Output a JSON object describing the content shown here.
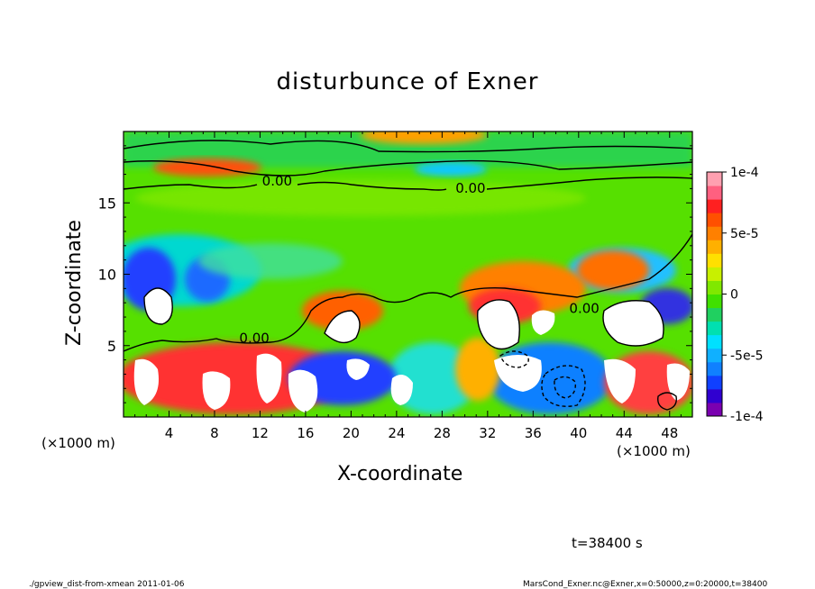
{
  "chart_data": {
    "type": "heatmap",
    "title": "disturbunce of Exner",
    "xlabel": "X-coordinate",
    "ylabel": "Z-coordinate",
    "x_unit": "(×1000 m)",
    "x_unit_right": "(×1000 m)",
    "xlim": [
      0,
      50
    ],
    "ylim": [
      0,
      20
    ],
    "x_ticks": [
      4,
      8,
      12,
      16,
      20,
      24,
      28,
      32,
      36,
      40,
      44,
      48
    ],
    "y_ticks": [
      5,
      10,
      15
    ],
    "colorbar": {
      "min": -0.0001,
      "max": 0.0001,
      "tick_values": [
        0.0001,
        5e-05,
        0,
        -5e-05,
        -0.0001
      ],
      "tick_labels": [
        "1e-4",
        "5e-5",
        "0",
        "-5e-5",
        "-1e-4"
      ]
    },
    "contour_labels": [
      {
        "text": "0.00",
        "x": 13.5,
        "z": 16.2
      },
      {
        "text": "0.00",
        "x": 30.5,
        "z": 15.7
      },
      {
        "text": "0.00",
        "x": 11.5,
        "z": 5.2
      },
      {
        "text": "0.00",
        "x": 40.5,
        "z": 7.3
      }
    ],
    "grid": false,
    "legend": "colorbar-right"
  },
  "annotations": {
    "time": "t=38400 s",
    "footer_left": "./gpview_dist-from-xmean  2011-01-06",
    "footer_right": "MarsCond_Exner.nc@Exner,x=0:50000,z=0:20000,t=38400"
  }
}
